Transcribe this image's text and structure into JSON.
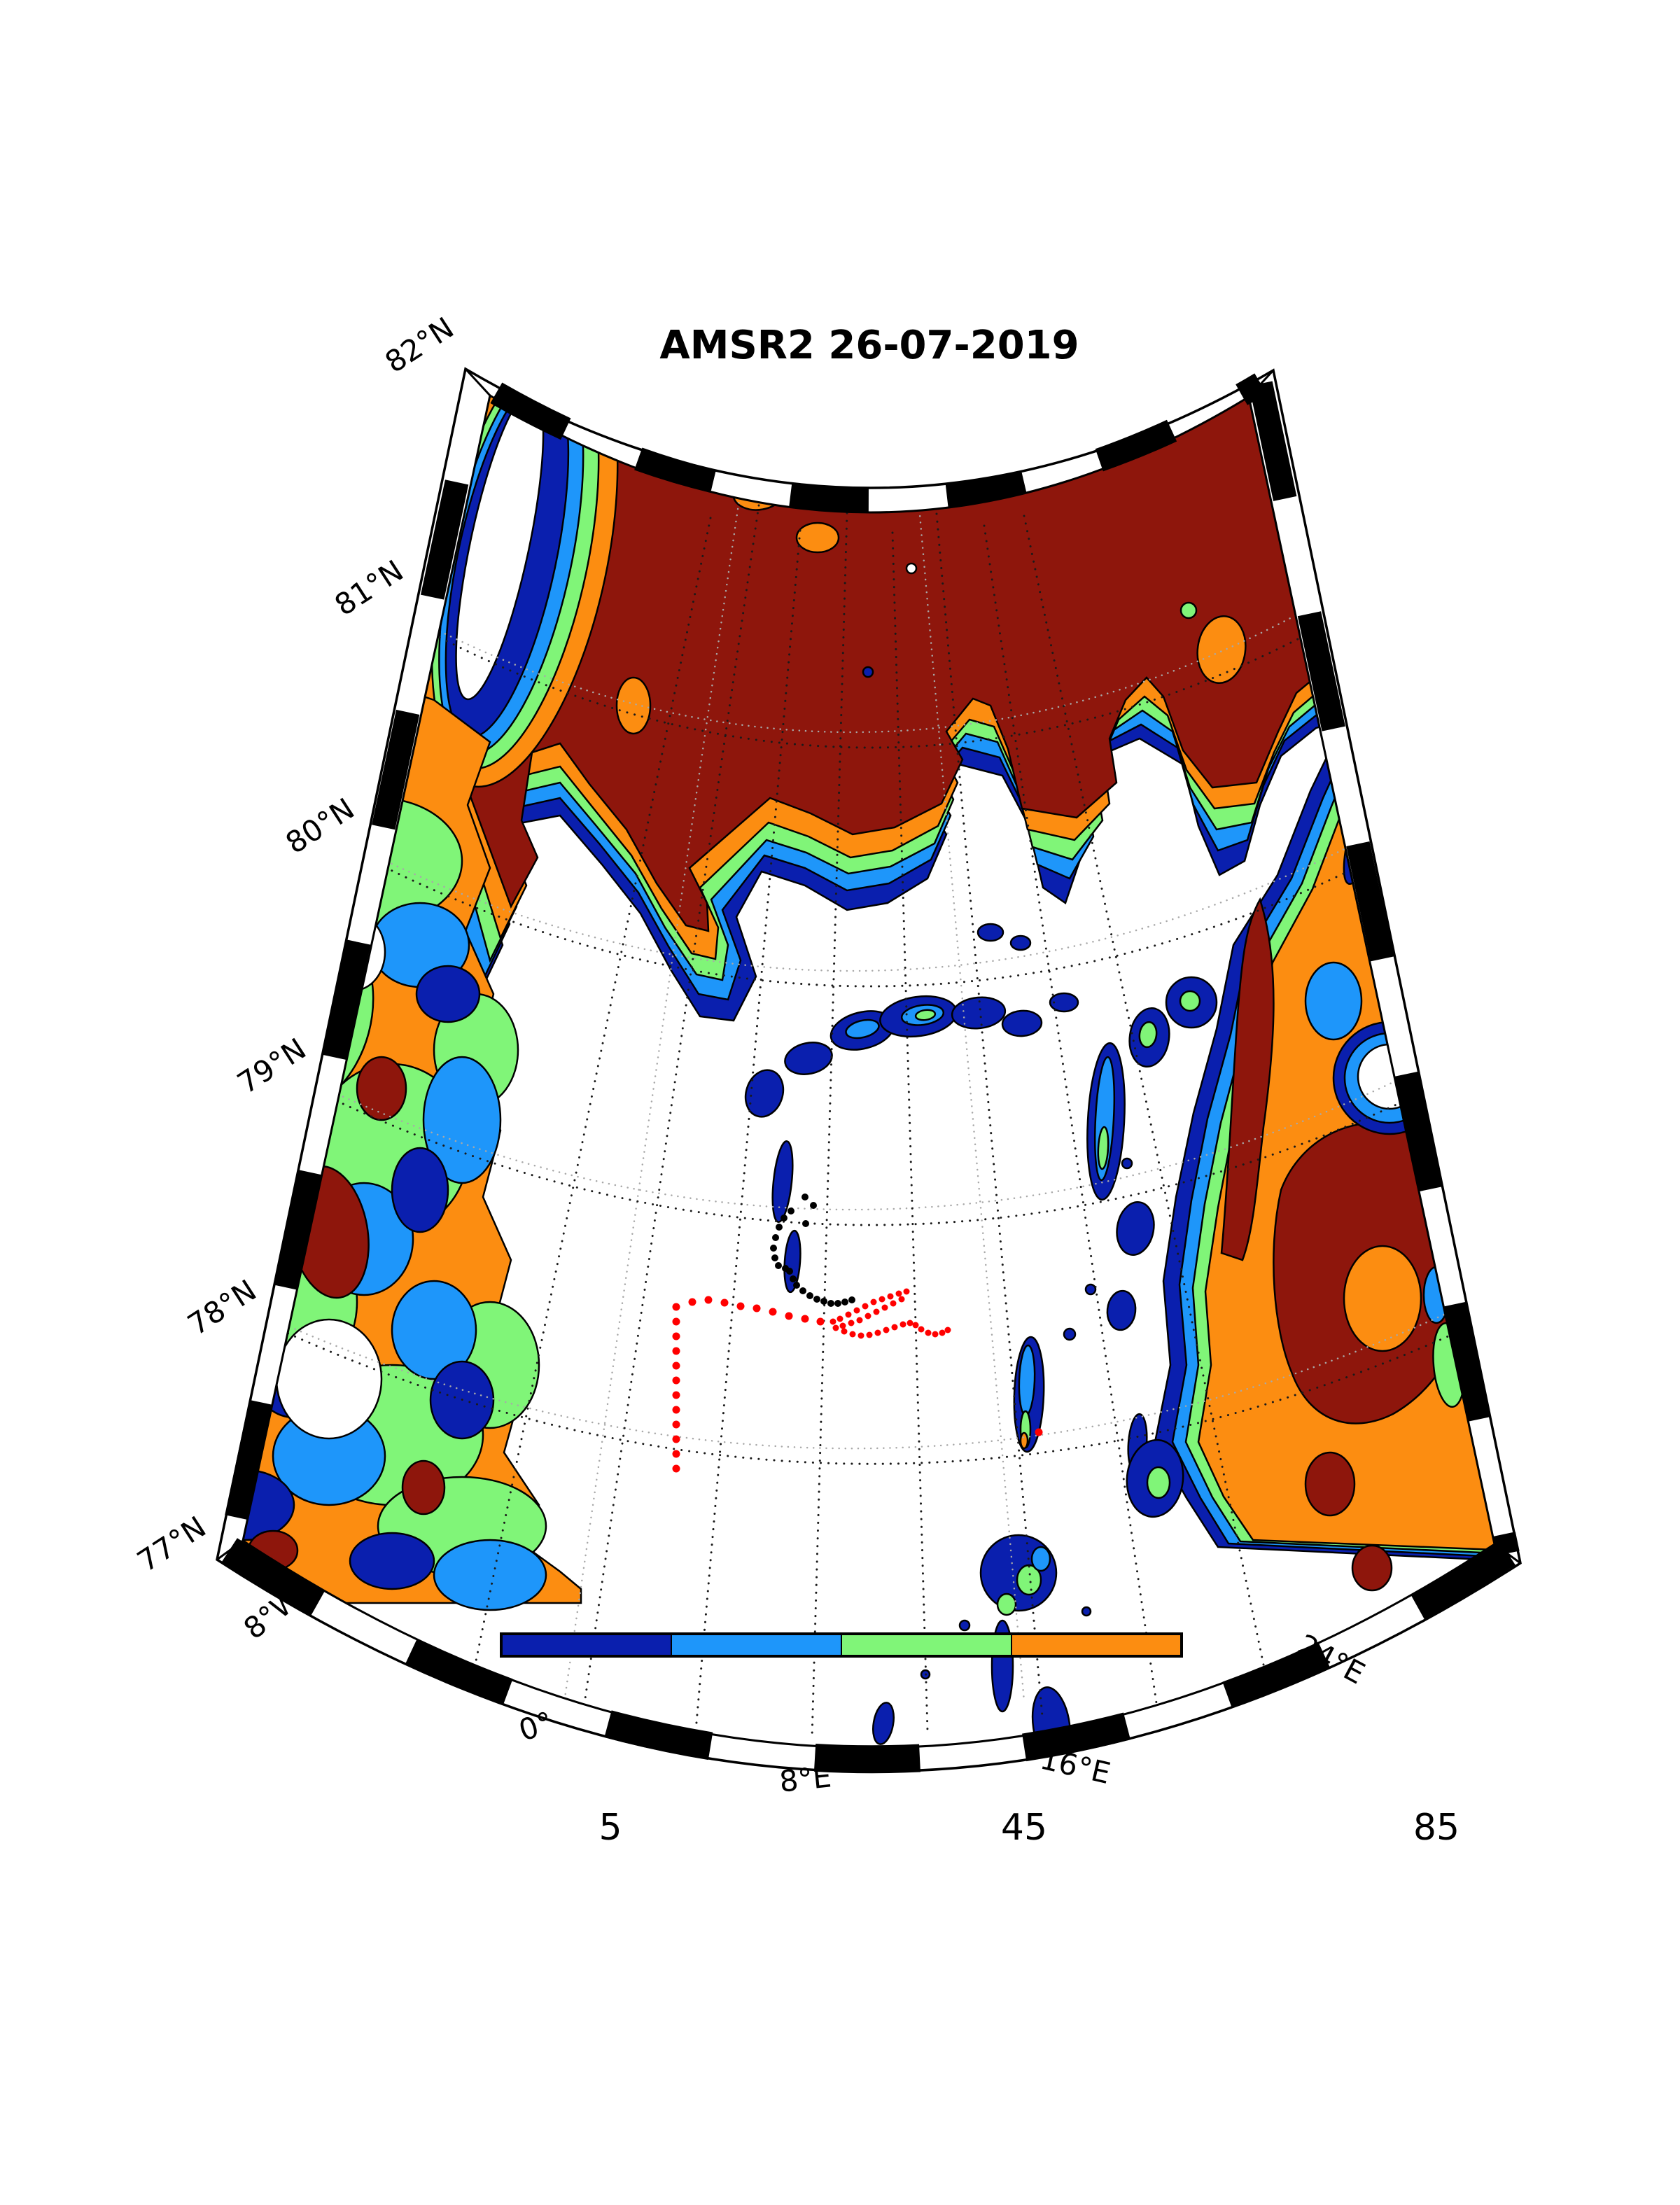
{
  "title": "AMSR2 26-07-2019",
  "map": {
    "latitude_labels": [
      "82°N",
      "81°N",
      "80°N",
      "79°N",
      "78°N",
      "77°N"
    ],
    "longitude_labels": [
      "8°W",
      "0°",
      "8°E",
      "16°E",
      "24°E"
    ],
    "palette": {
      "navy": "#0A1FAE",
      "dodger": "#1E96FA",
      "green": "#80F578",
      "orange": "#FC8D11",
      "darkred": "#8E160C",
      "water": "#FFFFFF",
      "graticule": "#1a1a1a",
      "graticule_ghost": "#a8a8a8"
    },
    "tracks": [
      {
        "name": "ship-track-red-sparse",
        "color": "#FF0000",
        "radius": 5.5,
        "points": [
          [
            966,
            2098
          ],
          [
            966,
            2077
          ],
          [
            966,
            2056
          ],
          [
            966,
            2035
          ],
          [
            966,
            2014
          ],
          [
            966,
            1993
          ],
          [
            966,
            1972
          ],
          [
            966,
            1951
          ],
          [
            966,
            1930
          ],
          [
            966,
            1909
          ],
          [
            966,
            1888
          ],
          [
            966,
            1867
          ],
          [
            989,
            1860
          ],
          [
            1012,
            1857
          ],
          [
            1035,
            1861
          ],
          [
            1058,
            1866
          ],
          [
            1081,
            1869
          ],
          [
            1104,
            1874
          ],
          [
            1127,
            1880
          ],
          [
            1150,
            1884
          ],
          [
            1172,
            1888
          ],
          [
            1484,
            2046
          ]
        ]
      },
      {
        "name": "ship-track-red-dense",
        "color": "#FF0000",
        "radius": 4.5,
        "points": [
          [
            1190,
            1888
          ],
          [
            1200,
            1884
          ],
          [
            1212,
            1878
          ],
          [
            1224,
            1872
          ],
          [
            1236,
            1866
          ],
          [
            1248,
            1860
          ],
          [
            1260,
            1856
          ],
          [
            1272,
            1852
          ],
          [
            1284,
            1848
          ],
          [
            1295,
            1845
          ],
          [
            1288,
            1856
          ],
          [
            1276,
            1862
          ],
          [
            1264,
            1868
          ],
          [
            1252,
            1874
          ],
          [
            1240,
            1880
          ],
          [
            1228,
            1886
          ],
          [
            1216,
            1890
          ],
          [
            1204,
            1894
          ],
          [
            1194,
            1897
          ],
          [
            1206,
            1902
          ],
          [
            1218,
            1906
          ],
          [
            1230,
            1908
          ],
          [
            1242,
            1907
          ],
          [
            1254,
            1904
          ],
          [
            1266,
            1900
          ],
          [
            1278,
            1896
          ],
          [
            1290,
            1892
          ],
          [
            1300,
            1890
          ],
          [
            1308,
            1893
          ],
          [
            1316,
            1899
          ],
          [
            1326,
            1904
          ],
          [
            1336,
            1906
          ],
          [
            1346,
            1904
          ],
          [
            1354,
            1900
          ]
        ]
      },
      {
        "name": "drift-track-black",
        "color": "#000000",
        "radius": 5,
        "points": [
          [
            1150,
            1710
          ],
          [
            1162,
            1722
          ],
          [
            1151,
            1748
          ],
          [
            1130,
            1730
          ],
          [
            1120,
            1740
          ],
          [
            1113,
            1753
          ],
          [
            1108,
            1768
          ],
          [
            1105,
            1783
          ],
          [
            1107,
            1797
          ],
          [
            1112,
            1808
          ],
          [
            1122,
            1812
          ],
          [
            1128,
            1816
          ],
          [
            1133,
            1827
          ],
          [
            1138,
            1836
          ],
          [
            1147,
            1844
          ],
          [
            1157,
            1851
          ],
          [
            1167,
            1856
          ],
          [
            1177,
            1859
          ],
          [
            1187,
            1862
          ],
          [
            1197,
            1862
          ],
          [
            1207,
            1860
          ],
          [
            1217,
            1857
          ]
        ]
      }
    ]
  },
  "colorbar": {
    "ticks": [
      "5",
      "45",
      "85"
    ],
    "segments": [
      "#0A1FAE",
      "#1E96FA",
      "#80F578",
      "#FC8D11"
    ]
  }
}
